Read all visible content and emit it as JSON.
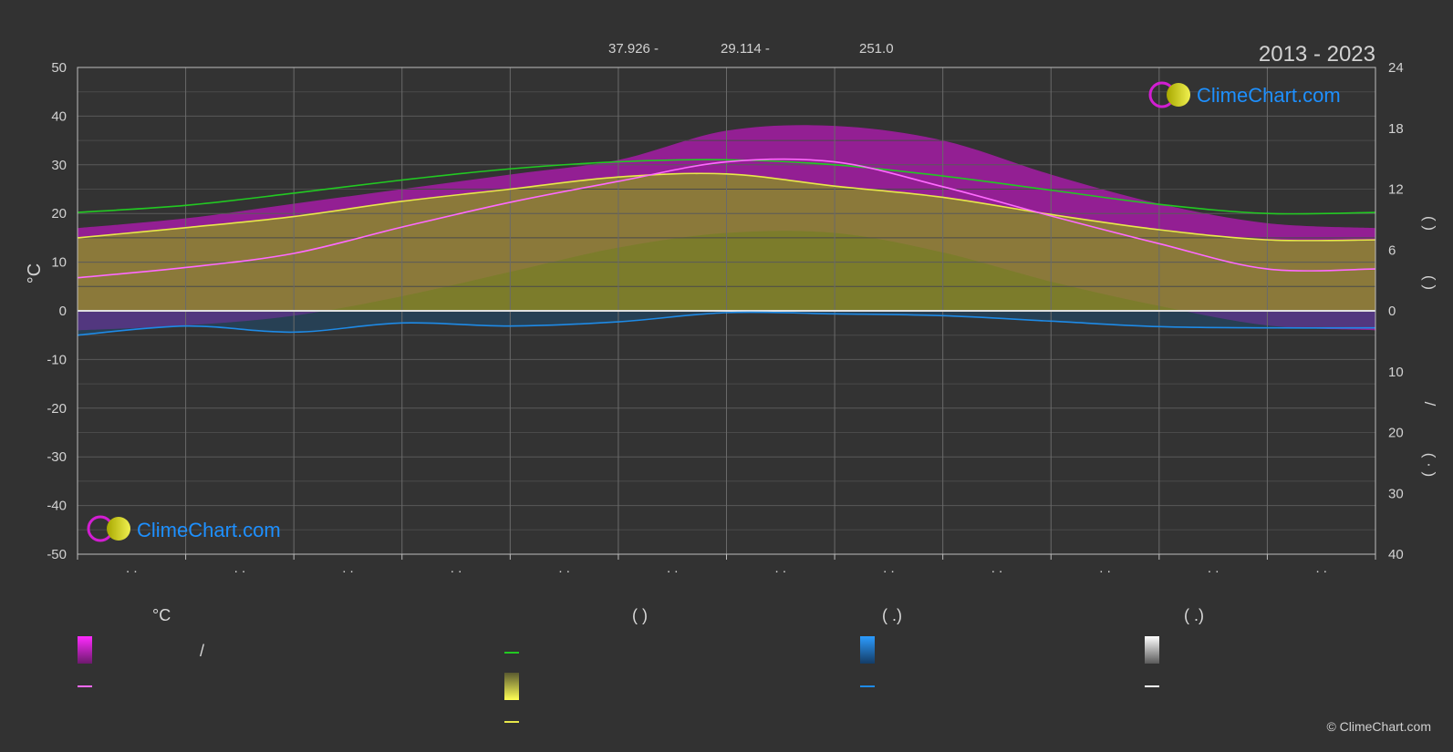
{
  "header": {
    "coords": [
      "37.926 -",
      "29.114 -",
      "251.0"
    ],
    "years": "2013 - 2023"
  },
  "brand": {
    "name": "ClimeChart.com",
    "copyright": "© ClimeChart.com"
  },
  "colors": {
    "background": "#323232",
    "daylight": "#22c922",
    "sunshine": "#e8e84a",
    "temp_band": "#d21ed2",
    "temp_line": "#ff6aff",
    "rain": "#1e8ae6",
    "snow": "#e6e6e6",
    "brand_text": "#1e90ff"
  },
  "legend": {
    "col1_header": "°C",
    "col1_slash": "/",
    "col2_header": "(          )",
    "col3_header": "(    .)",
    "col4_header": "(    .)"
  },
  "chart_data": {
    "type": "area",
    "x": [
      "Jan 1",
      "Feb 1",
      "Mar 1",
      "Apr 1",
      "May 1",
      "Jun 1",
      "Jul 1",
      "Aug 1",
      "Sep 1",
      "Oct 1",
      "Nov 1",
      "Dec 1",
      "Dec 31"
    ],
    "xtick_labels": [
      ". .",
      ". .",
      ". .",
      ". .",
      ". .",
      ". .",
      ". .",
      ". .",
      ". .",
      ". .",
      ". .",
      ". ."
    ],
    "ylabel_left": "°C",
    "ylim_left": [
      -50,
      50
    ],
    "yticks_left": [
      50,
      40,
      30,
      20,
      10,
      0,
      -10,
      -20,
      -30,
      -40,
      -50
    ],
    "ylim_right_hours": [
      0,
      24
    ],
    "yticks_right_hours": [
      24,
      18,
      12,
      6,
      0
    ],
    "ylim_right_precip": [
      0,
      40
    ],
    "yticks_right_precip": [
      10,
      20,
      30,
      40
    ],
    "right_axis_fragments": [
      "(       )",
      "(       )",
      "/",
      "(  ·  )"
    ],
    "series": [
      {
        "key": "daylight_hours",
        "unit": "h",
        "values": [
          9.7,
          10.4,
          11.6,
          12.9,
          14.0,
          14.7,
          14.9,
          14.4,
          13.3,
          11.9,
          10.5,
          9.6,
          9.7
        ]
      },
      {
        "key": "sunshine_hours",
        "unit": "h",
        "values": [
          7.2,
          8.2,
          9.3,
          10.8,
          12.0,
          13.2,
          13.5,
          12.3,
          11.2,
          9.5,
          8.0,
          7.0,
          7.0
        ]
      },
      {
        "key": "mean_temp",
        "unit": "°C",
        "values": [
          6.8,
          8.9,
          11.8,
          17.2,
          22.3,
          26.6,
          30.6,
          30.6,
          25.5,
          19.5,
          13.8,
          8.6,
          8.6
        ]
      },
      {
        "key": "max_temp",
        "unit": "°C",
        "values": [
          17,
          19,
          22,
          25,
          28,
          31,
          37,
          38,
          35,
          28,
          22,
          18,
          17
        ]
      },
      {
        "key": "min_temp",
        "unit": "°C",
        "values": [
          -4,
          -3,
          -1,
          3,
          8,
          13,
          16,
          16,
          12,
          6,
          1,
          -3,
          -4
        ]
      },
      {
        "key": "precipitation",
        "unit": "mm",
        "values": [
          4.0,
          2.5,
          3.5,
          2.0,
          2.5,
          1.8,
          0.3,
          0.5,
          0.8,
          1.7,
          2.6,
          2.8,
          2.8
        ]
      }
    ],
    "grid": true,
    "legend_position": "bottom"
  }
}
